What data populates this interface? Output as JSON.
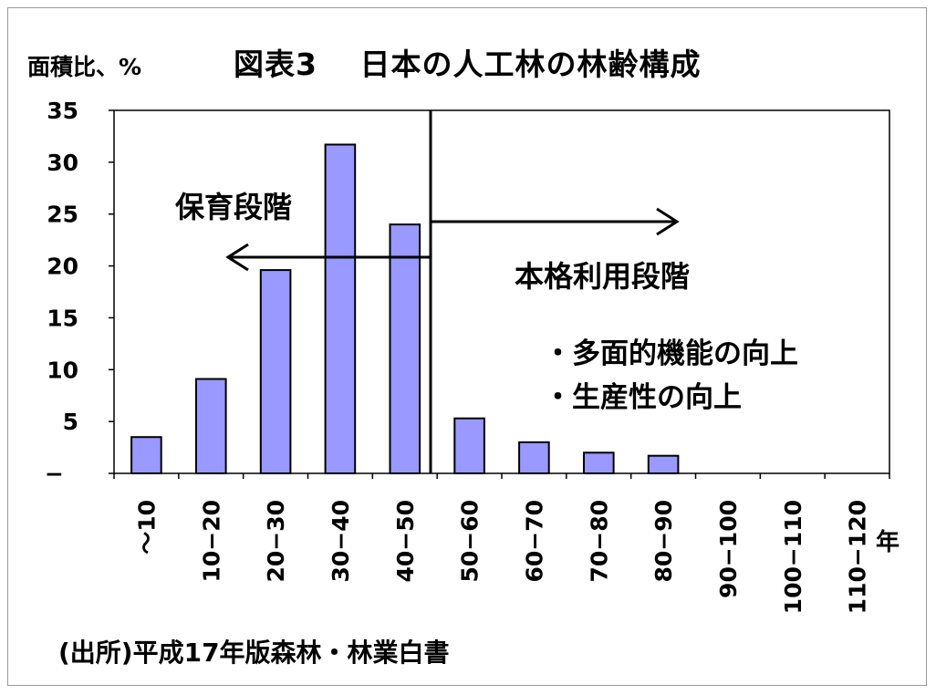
{
  "chart_data": {
    "type": "bar",
    "title": "図表3　 日本の人工林の林齢構成",
    "ylabel": "面積比、%",
    "xlabel": "年",
    "ylim": [
      0,
      35
    ],
    "yticks": [
      "−",
      "5",
      "10",
      "15",
      "20",
      "25",
      "30",
      "35"
    ],
    "categories": [
      "〜10",
      "10−20",
      "20−30",
      "30−40",
      "40−50",
      "50−60",
      "60−70",
      "70−80",
      "80−90",
      "90−100",
      "100−110",
      "110−120"
    ],
    "values": [
      3.5,
      9.1,
      19.6,
      31.7,
      24.0,
      5.3,
      3.0,
      2.0,
      1.7,
      0,
      0,
      0
    ],
    "bar_color": "#9999ff",
    "grid": false,
    "divider_after_category": "40−50",
    "annotations": {
      "left_stage": "保育段階",
      "right_stage": "本格利用段階",
      "goal_1": "・多面的機能の向上",
      "goal_2": "・生産性の向上"
    },
    "source": "(出所)平成17年版森林・林業白書"
  }
}
